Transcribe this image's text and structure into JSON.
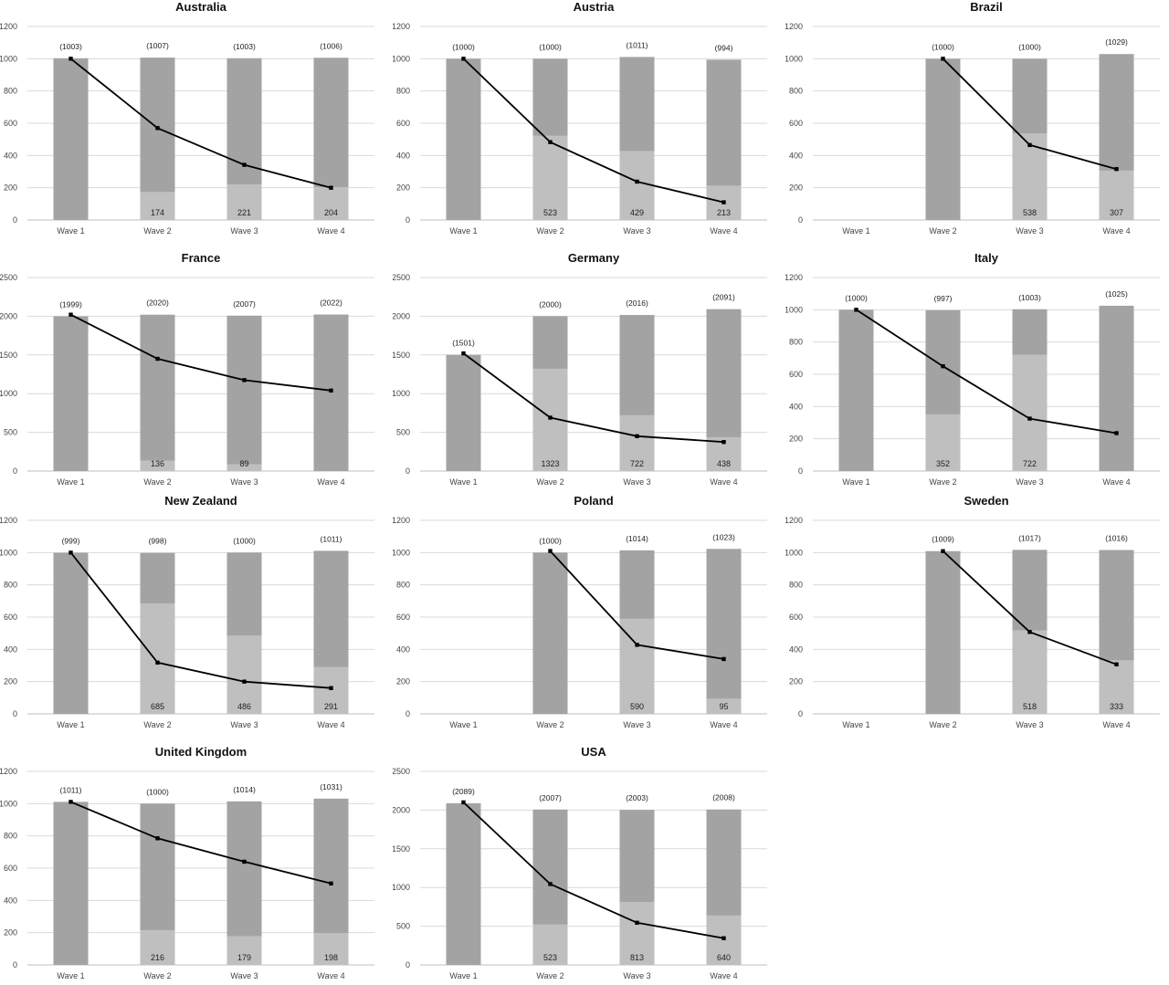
{
  "chart_data": [
    {
      "type": "bar",
      "title": "Australia",
      "categories": [
        "Wave 1",
        "Wave 2",
        "Wave 3",
        "Wave 4"
      ],
      "ylim": [
        0,
        1200
      ],
      "yticks": [
        0,
        200,
        400,
        600,
        800,
        1000,
        1200
      ],
      "totals": [
        1003,
        1007,
        1003,
        1006
      ],
      "total_labels": [
        "(1003)",
        "(1007)",
        "(1003)",
        "(1006)"
      ],
      "inner_values": [
        null,
        174,
        221,
        204
      ],
      "line": [
        1000,
        570,
        342,
        200
      ]
    },
    {
      "type": "bar",
      "title": "Austria",
      "categories": [
        "Wave 1",
        "Wave 2",
        "Wave 3",
        "Wave 4"
      ],
      "ylim": [
        0,
        1200
      ],
      "yticks": [
        0,
        200,
        400,
        600,
        800,
        1000,
        1200
      ],
      "totals": [
        1000,
        1000,
        1011,
        994
      ],
      "total_labels": [
        "(1000)",
        "(1000)",
        "(1011)",
        "(994)"
      ],
      "inner_values": [
        null,
        523,
        429,
        213
      ],
      "line": [
        1000,
        483,
        238,
        110
      ]
    },
    {
      "type": "bar",
      "title": "Brazil",
      "categories": [
        "Wave 1",
        "Wave 2",
        "Wave 3",
        "Wave 4"
      ],
      "ylim": [
        0,
        1200
      ],
      "yticks": [
        0,
        200,
        400,
        600,
        800,
        1000,
        1200
      ],
      "totals": [
        null,
        1000,
        1000,
        1029
      ],
      "total_labels": [
        null,
        "(1000)",
        "(1000)",
        "(1029)"
      ],
      "inner_values": [
        null,
        null,
        538,
        307
      ],
      "line": [
        null,
        1000,
        465,
        316
      ]
    },
    {
      "type": "bar",
      "title": "France",
      "categories": [
        "Wave 1",
        "Wave 2",
        "Wave 3",
        "Wave 4"
      ],
      "ylim": [
        0,
        2500
      ],
      "yticks": [
        0,
        500,
        1000,
        1500,
        2000,
        2500
      ],
      "totals": [
        1999,
        2020,
        2007,
        2022
      ],
      "total_labels": [
        "(1999)",
        "(2020)",
        "(2007)",
        "(2022)"
      ],
      "inner_values": [
        null,
        136,
        89,
        null
      ],
      "line": [
        2020,
        1450,
        1175,
        1040
      ]
    },
    {
      "type": "bar",
      "title": "Germany",
      "categories": [
        "Wave 1",
        "Wave 2",
        "Wave 3",
        "Wave 4"
      ],
      "ylim": [
        0,
        2500
      ],
      "yticks": [
        0,
        500,
        1000,
        1500,
        2000,
        2500
      ],
      "totals": [
        1501,
        2000,
        2016,
        2091
      ],
      "total_labels": [
        "(1501)",
        "(2000)",
        "(2016)",
        "(2091)"
      ],
      "inner_values": [
        null,
        1323,
        722,
        438
      ],
      "line": [
        1520,
        690,
        450,
        375
      ]
    },
    {
      "type": "bar",
      "title": "Italy",
      "categories": [
        "Wave 1",
        "Wave 2",
        "Wave 3",
        "Wave 4"
      ],
      "ylim": [
        0,
        1200
      ],
      "yticks": [
        0,
        200,
        400,
        600,
        800,
        1000,
        1200
      ],
      "totals": [
        1000,
        997,
        1003,
        1025
      ],
      "total_labels": [
        "(1000)",
        "(997)",
        "(1003)",
        "(1025)"
      ],
      "inner_values": [
        null,
        352,
        722,
        null
      ],
      "line": [
        1000,
        650,
        325,
        235
      ]
    },
    {
      "type": "bar",
      "title": "New Zealand",
      "categories": [
        "Wave 1",
        "Wave 2",
        "Wave 3",
        "Wave 4"
      ],
      "ylim": [
        0,
        1200
      ],
      "yticks": [
        0,
        200,
        400,
        600,
        800,
        1000,
        1200
      ],
      "totals": [
        999,
        998,
        1000,
        1011
      ],
      "total_labels": [
        "(999)",
        "(998)",
        "(1000)",
        "(1011)"
      ],
      "inner_values": [
        null,
        685,
        486,
        291
      ],
      "line": [
        1000,
        318,
        200,
        160
      ]
    },
    {
      "type": "bar",
      "title": "Poland",
      "categories": [
        "Wave 1",
        "Wave 2",
        "Wave 3",
        "Wave 4"
      ],
      "ylim": [
        0,
        1200
      ],
      "yticks": [
        0,
        200,
        400,
        600,
        800,
        1000,
        1200
      ],
      "totals": [
        null,
        1000,
        1014,
        1023
      ],
      "total_labels": [
        null,
        "(1000)",
        "(1014)",
        "(1023)"
      ],
      "inner_values": [
        null,
        null,
        590,
        95
      ],
      "line": [
        null,
        1010,
        428,
        340
      ]
    },
    {
      "type": "bar",
      "title": "Sweden",
      "categories": [
        "Wave 1",
        "Wave 2",
        "Wave 3",
        "Wave 4"
      ],
      "ylim": [
        0,
        1200
      ],
      "yticks": [
        0,
        200,
        400,
        600,
        800,
        1000,
        1200
      ],
      "totals": [
        null,
        1009,
        1017,
        1016
      ],
      "total_labels": [
        null,
        "(1009)",
        "(1017)",
        "(1016)"
      ],
      "inner_values": [
        null,
        null,
        518,
        333
      ],
      "line": [
        null,
        1009,
        508,
        307
      ]
    },
    {
      "type": "bar",
      "title": "United Kingdom",
      "categories": [
        "Wave 1",
        "Wave 2",
        "Wave 3",
        "Wave 4"
      ],
      "ylim": [
        0,
        1200
      ],
      "yticks": [
        0,
        200,
        400,
        600,
        800,
        1000,
        1200
      ],
      "totals": [
        1011,
        1000,
        1014,
        1031
      ],
      "total_labels": [
        "(1011)",
        "(1000)",
        "(1014)",
        "(1031)"
      ],
      "inner_values": [
        null,
        216,
        179,
        198
      ],
      "line": [
        1011,
        785,
        640,
        505
      ]
    },
    {
      "type": "bar",
      "title": "USA",
      "categories": [
        "Wave 1",
        "Wave 2",
        "Wave 3",
        "Wave 4"
      ],
      "ylim": [
        0,
        2500
      ],
      "yticks": [
        0,
        500,
        1000,
        1500,
        2000,
        2500
      ],
      "totals": [
        2089,
        2007,
        2003,
        2008
      ],
      "total_labels": [
        "(2089)",
        "(2007)",
        "(2003)",
        "(2008)"
      ],
      "inner_values": [
        null,
        523,
        813,
        640
      ],
      "line": [
        2100,
        1045,
        545,
        345
      ]
    }
  ],
  "colors": {
    "bar_dark": "#a3a3a3",
    "bar_light": "#bfbfbf",
    "line": "#000000",
    "grid": "#d9d9d9",
    "axis": "#bfbfbf"
  }
}
